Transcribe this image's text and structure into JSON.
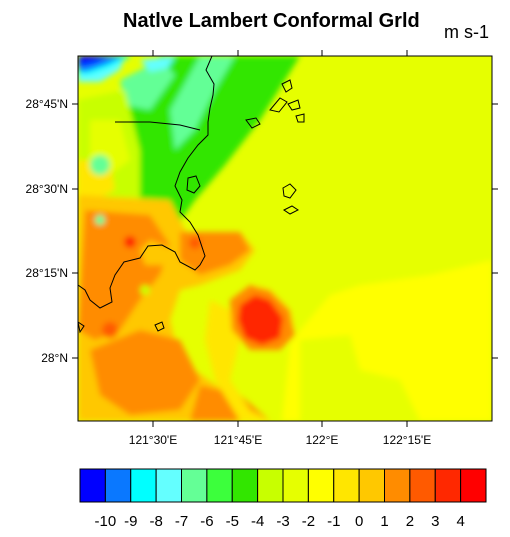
{
  "map": {
    "title": "Natlve Lambert Conformal Grld",
    "units": "m s-1",
    "lat_labels": [
      "28°45'N",
      "28°30'N",
      "28°15'N",
      "28°N"
    ],
    "lon_labels": [
      "121°30'E",
      "121°45'E",
      "122°E",
      "122°15'E"
    ]
  },
  "colorbar": {
    "labels": [
      "-10",
      "-9",
      "-8",
      "-7",
      "-6",
      "-5",
      "-4",
      "-3",
      "-2",
      "-1",
      "0",
      "1",
      "2",
      "3",
      "4"
    ],
    "colors": [
      "#0000ff",
      "#0a78ff",
      "#00ffff",
      "#64ffff",
      "#64ff96",
      "#3cff3c",
      "#32e600",
      "#c8ff00",
      "#e6ff00",
      "#ffff00",
      "#ffe600",
      "#ffc800",
      "#ff8c00",
      "#ff5a00",
      "#ff2800",
      "#ff0000"
    ]
  }
}
